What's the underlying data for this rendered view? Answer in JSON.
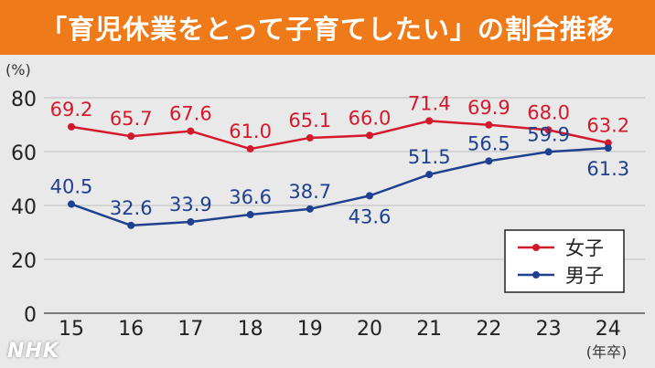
{
  "title": "「育児休業をとって子育てしたい」の割合推移",
  "logo_text": "NHK",
  "colors": {
    "title_bar": "#ef7a1a",
    "female": "#d3192c",
    "male": "#1f3f8f"
  },
  "chart_data": {
    "type": "line",
    "ylabel": "(%)",
    "xlabel": "(年卒)",
    "ylim": [
      0,
      80
    ],
    "yticks": [
      0,
      20,
      40,
      60,
      80
    ],
    "categories": [
      "15",
      "16",
      "17",
      "18",
      "19",
      "20",
      "21",
      "22",
      "23",
      "24"
    ],
    "grid": true,
    "legend_position": "bottom-right",
    "series": [
      {
        "name": "女子",
        "values": [
          69.2,
          65.7,
          67.6,
          61.0,
          65.1,
          66.0,
          71.4,
          69.9,
          68.0,
          63.2
        ],
        "labels": [
          "69.2",
          "65.7",
          "67.6",
          "61.0",
          "65.1",
          "66.0",
          "71.4",
          "69.9",
          "68.0",
          "63.2"
        ]
      },
      {
        "name": "男子",
        "values": [
          40.5,
          32.6,
          33.9,
          36.6,
          38.7,
          43.6,
          51.5,
          56.5,
          59.9,
          61.3
        ],
        "labels": [
          "40.5",
          "32.6",
          "33.9",
          "36.6",
          "38.7",
          "43.6",
          "51.5",
          "56.5",
          "59.9",
          "61.3"
        ]
      }
    ]
  }
}
